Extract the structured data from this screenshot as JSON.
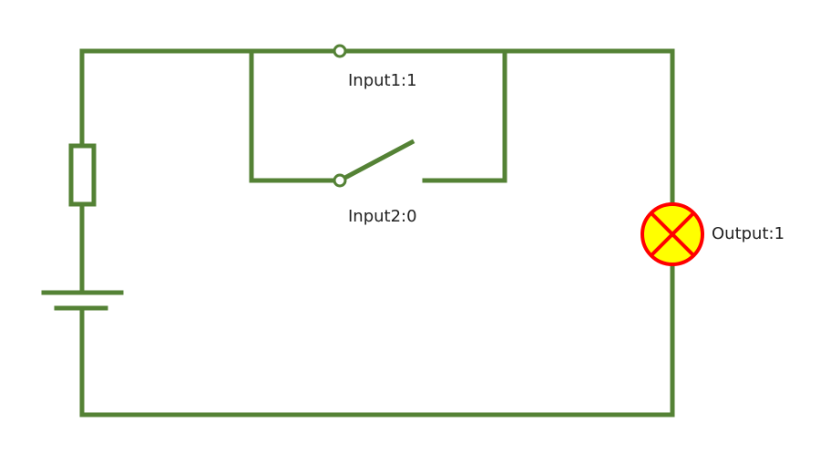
{
  "colors": {
    "wire": "#548235",
    "lamp_fill": "#ffff00",
    "lamp_stroke": "#ff0000",
    "terminal_fill": "#ffffff",
    "background": "#ffffff"
  },
  "components": {
    "input1": {
      "label": "Input1:1",
      "state": 1,
      "icon": "switch-closed-icon"
    },
    "input2": {
      "label": "Input2:0",
      "state": 0,
      "icon": "switch-open-icon"
    },
    "output": {
      "label": "Output:1",
      "state": 1,
      "icon": "lamp-icon"
    },
    "resistor": {
      "icon": "resistor-icon"
    },
    "battery": {
      "icon": "battery-icon"
    }
  }
}
